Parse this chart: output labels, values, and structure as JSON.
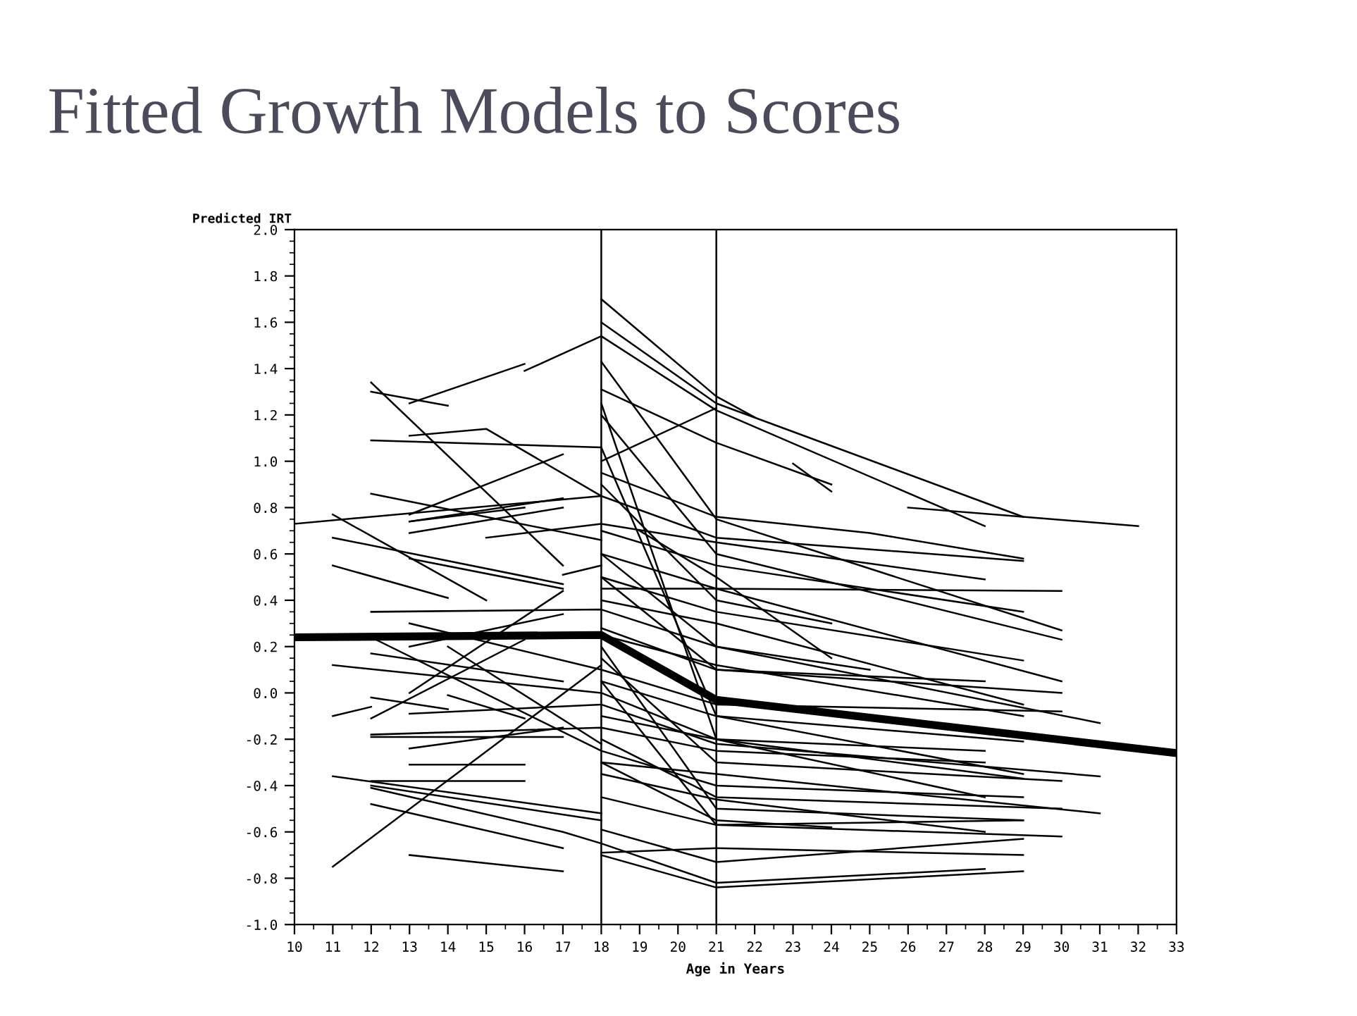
{
  "chart_data": {
    "type": "line",
    "title": "Fitted Growth Models to Scores",
    "xlabel": "Age in Years",
    "ylabel": "Predicted IRT",
    "xlim": [
      10,
      33
    ],
    "xticks": [
      10,
      11,
      12,
      13,
      14,
      15,
      16,
      17,
      18,
      19,
      20,
      21,
      22,
      23,
      24,
      25,
      26,
      27,
      28,
      29,
      30,
      31,
      32,
      33
    ],
    "ylim": [
      -1.0,
      2.0
    ],
    "yticks": [
      {
        "value": -1,
        "label": "-1.0"
      },
      -0.8,
      -0.6,
      -0.4,
      -0.2,
      {
        "value": 0,
        "label": "0.0"
      },
      0.2,
      0.4,
      0.6,
      0.8,
      {
        "value": 1,
        "label": "1.0"
      },
      1.2,
      1.4,
      1.6,
      1.8,
      {
        "value": 2,
        "label": "2.0"
      }
    ],
    "grid": false,
    "marker": "none",
    "line_style": "solid",
    "ref_lines": [
      {
        "axis": "x",
        "value": 18,
        "color": "#000000"
      },
      {
        "axis": "x",
        "value": 21,
        "color": "#000000"
      }
    ],
    "series": [
      {
        "x": [
          10,
          18,
          21,
          33
        ],
        "values": [
          0.24,
          0.25,
          -0.03,
          -0.26
        ],
        "color": "#000000"
      },
      {
        "x": [
          10,
          18,
          21,
          29
        ],
        "values": [
          0.73,
          0.85,
          0.67,
          0.57
        ],
        "color": "#000000"
      },
      {
        "x": [
          12,
          17
        ],
        "values": [
          1.34,
          0.55
        ],
        "color": "#000000"
      },
      {
        "x": [
          12,
          14
        ],
        "values": [
          1.3,
          1.24
        ],
        "color": "#000000"
      },
      {
        "x": [
          13,
          16
        ],
        "values": [
          1.25,
          1.42
        ],
        "color": "#000000"
      },
      {
        "x": [
          16,
          18,
          21,
          28
        ],
        "values": [
          1.39,
          1.54,
          1.22,
          0.72
        ],
        "color": "#000000"
      },
      {
        "x": [
          12,
          18,
          21,
          29
        ],
        "values": [
          1.09,
          1.06,
          -0.1,
          -0.35
        ],
        "color": "#000000"
      },
      {
        "x": [
          13,
          15,
          18
        ],
        "values": [
          1.11,
          1.14,
          0.85
        ],
        "color": "#000000"
      },
      {
        "x": [
          13,
          17
        ],
        "values": [
          0.77,
          1.03
        ],
        "color": "#000000"
      },
      {
        "x": [
          12,
          18
        ],
        "values": [
          0.86,
          0.66
        ],
        "color": "#000000"
      },
      {
        "x": [
          13,
          17
        ],
        "values": [
          0.74,
          0.84
        ],
        "color": "#000000"
      },
      {
        "x": [
          13,
          17
        ],
        "values": [
          0.69,
          0.8
        ],
        "color": "#000000"
      },
      {
        "x": [
          13,
          16
        ],
        "values": [
          0.74,
          0.8
        ],
        "color": "#000000"
      },
      {
        "x": [
          15,
          18,
          21,
          28
        ],
        "values": [
          0.67,
          0.73,
          0.65,
          0.49
        ],
        "color": "#000000"
      },
      {
        "x": [
          11,
          15
        ],
        "values": [
          0.77,
          0.4
        ],
        "color": "#000000"
      },
      {
        "x": [
          11,
          17
        ],
        "values": [
          0.67,
          0.47
        ],
        "color": "#000000"
      },
      {
        "x": [
          11,
          14
        ],
        "values": [
          0.55,
          0.41
        ],
        "color": "#000000"
      },
      {
        "x": [
          13,
          17
        ],
        "values": [
          0.58,
          0.45
        ],
        "color": "#000000"
      },
      {
        "x": [
          12,
          18,
          21,
          31
        ],
        "values": [
          0.35,
          0.36,
          0.2,
          -0.13
        ],
        "color": "#000000"
      },
      {
        "x": [
          17,
          18
        ],
        "values": [
          0.51,
          0.55
        ],
        "color": "#000000"
      },
      {
        "x": [
          11,
          18
        ],
        "values": [
          -0.75,
          0.12
        ],
        "color": "#000000"
      },
      {
        "x": [
          13,
          17
        ],
        "values": [
          0.0,
          0.44
        ],
        "color": "#000000"
      },
      {
        "x": [
          11,
          12
        ],
        "values": [
          -0.1,
          -0.06
        ],
        "color": "#000000"
      },
      {
        "x": [
          11,
          18,
          21,
          28
        ],
        "values": [
          0.12,
          0.0,
          -0.2,
          -0.25
        ],
        "color": "#000000"
      },
      {
        "x": [
          12,
          17
        ],
        "values": [
          0.17,
          0.05
        ],
        "color": "#000000"
      },
      {
        "x": [
          12,
          16
        ],
        "values": [
          -0.11,
          0.23
        ],
        "color": "#000000"
      },
      {
        "x": [
          13,
          18,
          21,
          30
        ],
        "values": [
          0.3,
          0.1,
          -0.05,
          -0.08
        ],
        "color": "#000000"
      },
      {
        "x": [
          13,
          17
        ],
        "values": [
          0.2,
          0.34
        ],
        "color": "#000000"
      },
      {
        "x": [
          14,
          18
        ],
        "values": [
          0.2,
          -0.22
        ],
        "color": "#000000"
      },
      {
        "x": [
          12,
          18,
          21,
          29
        ],
        "values": [
          0.24,
          -0.25,
          -0.4,
          -0.45
        ],
        "color": "#000000"
      },
      {
        "x": [
          12,
          17
        ],
        "values": [
          -0.19,
          -0.19
        ],
        "color": "#000000"
      },
      {
        "x": [
          12,
          18,
          21,
          28
        ],
        "values": [
          -0.18,
          -0.15,
          -0.25,
          -0.3
        ],
        "color": "#000000"
      },
      {
        "x": [
          13,
          16
        ],
        "values": [
          -0.31,
          -0.31
        ],
        "color": "#000000"
      },
      {
        "x": [
          12,
          16
        ],
        "values": [
          -0.38,
          -0.38
        ],
        "color": "#000000"
      },
      {
        "x": [
          11,
          18
        ],
        "values": [
          -0.36,
          -0.52
        ],
        "color": "#000000"
      },
      {
        "x": [
          12,
          17,
          18,
          21,
          28
        ],
        "values": [
          -0.41,
          -0.6,
          -0.65,
          -0.82,
          -0.76
        ],
        "color": "#000000"
      },
      {
        "x": [
          12,
          17
        ],
        "values": [
          -0.48,
          -0.67
        ],
        "color": "#000000"
      },
      {
        "x": [
          13,
          17
        ],
        "values": [
          -0.7,
          -0.77
        ],
        "color": "#000000"
      },
      {
        "x": [
          12,
          18
        ],
        "values": [
          -0.4,
          -0.55
        ],
        "color": "#000000"
      },
      {
        "x": [
          13,
          18,
          21,
          31
        ],
        "values": [
          -0.09,
          -0.05,
          -0.22,
          -0.36
        ],
        "color": "#000000"
      },
      {
        "x": [
          14,
          16
        ],
        "values": [
          -0.01,
          -0.11
        ],
        "color": "#000000"
      },
      {
        "x": [
          13,
          17
        ],
        "values": [
          -0.24,
          -0.15
        ],
        "color": "#000000"
      },
      {
        "x": [
          12,
          14
        ],
        "values": [
          -0.02,
          -0.07
        ],
        "color": "#000000"
      },
      {
        "x": [
          18,
          21,
          22
        ],
        "values": [
          1.7,
          1.28,
          1.19
        ],
        "color": "#000000"
      },
      {
        "x": [
          18,
          21,
          29
        ],
        "values": [
          1.6,
          1.25,
          0.76
        ],
        "color": "#000000"
      },
      {
        "x": [
          18,
          21,
          30
        ],
        "values": [
          1.43,
          0.75,
          0.27
        ],
        "color": "#000000"
      },
      {
        "x": [
          18,
          21,
          24
        ],
        "values": [
          1.31,
          1.08,
          0.9
        ],
        "color": "#000000"
      },
      {
        "x": [
          18,
          21
        ],
        "values": [
          1.0,
          1.23
        ],
        "color": "#000000"
      },
      {
        "x": [
          23,
          24
        ],
        "values": [
          0.99,
          0.87
        ],
        "color": "#000000"
      },
      {
        "x": [
          26,
          29,
          32
        ],
        "values": [
          0.8,
          0.76,
          0.72
        ],
        "color": "#000000"
      },
      {
        "x": [
          18,
          21,
          25,
          29
        ],
        "values": [
          0.95,
          0.76,
          0.69,
          0.58
        ],
        "color": "#000000"
      },
      {
        "x": [
          18,
          21,
          30
        ],
        "values": [
          0.45,
          0.45,
          0.44
        ],
        "color": "#000000"
      },
      {
        "x": [
          18,
          21,
          30
        ],
        "values": [
          1.2,
          0.6,
          0.23
        ],
        "color": "#000000"
      },
      {
        "x": [
          18,
          21,
          29
        ],
        "values": [
          0.7,
          0.55,
          0.35
        ],
        "color": "#000000"
      },
      {
        "x": [
          18,
          21,
          30
        ],
        "values": [
          0.6,
          0.45,
          0.05
        ],
        "color": "#000000"
      },
      {
        "x": [
          18,
          21,
          29
        ],
        "values": [
          0.5,
          0.35,
          0.14
        ],
        "color": "#000000"
      },
      {
        "x": [
          18,
          21,
          30
        ],
        "values": [
          0.28,
          0.1,
          0.0
        ],
        "color": "#000000"
      },
      {
        "x": [
          18,
          21,
          29
        ],
        "values": [
          0.4,
          0.3,
          -0.05
        ],
        "color": "#000000"
      },
      {
        "x": [
          18,
          21,
          29
        ],
        "values": [
          0.25,
          0.12,
          -0.1
        ],
        "color": "#000000"
      },
      {
        "x": [
          18,
          21,
          29
        ],
        "values": [
          0.05,
          -0.1,
          -0.21
        ],
        "color": "#000000"
      },
      {
        "x": [
          18,
          21,
          29
        ],
        "values": [
          -0.1,
          -0.2,
          -0.37
        ],
        "color": "#000000"
      },
      {
        "x": [
          18,
          21,
          30
        ],
        "values": [
          0.15,
          -0.3,
          -0.38
        ],
        "color": "#000000"
      },
      {
        "x": [
          18,
          21,
          30
        ],
        "values": [
          -0.2,
          -0.45,
          -0.5
        ],
        "color": "#000000"
      },
      {
        "x": [
          18,
          21,
          31
        ],
        "values": [
          -0.3,
          -0.35,
          -0.52
        ],
        "color": "#000000"
      },
      {
        "x": [
          18,
          21,
          29
        ],
        "values": [
          0.2,
          -0.5,
          -0.55
        ],
        "color": "#000000"
      },
      {
        "x": [
          18,
          21,
          28
        ],
        "values": [
          -0.35,
          -0.46,
          -0.6
        ],
        "color": "#000000"
      },
      {
        "x": [
          18,
          21,
          30
        ],
        "values": [
          0.05,
          -0.57,
          -0.62
        ],
        "color": "#000000"
      },
      {
        "x": [
          18,
          21,
          29
        ],
        "values": [
          -0.45,
          -0.57,
          -0.55
        ],
        "color": "#000000"
      },
      {
        "x": [
          18,
          21,
          29
        ],
        "values": [
          -0.59,
          -0.73,
          -0.63
        ],
        "color": "#000000"
      },
      {
        "x": [
          18,
          21,
          29
        ],
        "values": [
          -0.69,
          -0.67,
          -0.7
        ],
        "color": "#000000"
      },
      {
        "x": [
          18,
          21,
          29
        ],
        "values": [
          -0.7,
          -0.84,
          -0.77
        ],
        "color": "#000000"
      },
      {
        "x": [
          18,
          21,
          24
        ],
        "values": [
          -0.3,
          -0.55,
          -0.58
        ],
        "color": "#000000"
      },
      {
        "x": [
          18,
          21,
          25
        ],
        "values": [
          0.6,
          0.2,
          0.1
        ],
        "color": "#000000"
      },
      {
        "x": [
          18,
          21,
          24
        ],
        "values": [
          0.9,
          0.4,
          0.3
        ],
        "color": "#000000"
      },
      {
        "x": [
          19,
          21,
          24
        ],
        "values": [
          0.7,
          0.5,
          0.15
        ],
        "color": "#000000"
      },
      {
        "x": [
          18,
          21,
          28
        ],
        "values": [
          1.25,
          -0.2,
          -0.45
        ],
        "color": "#000000"
      },
      {
        "x": [
          18,
          21,
          28
        ],
        "values": [
          0.5,
          0.1,
          0.05
        ],
        "color": "#000000"
      }
    ]
  }
}
